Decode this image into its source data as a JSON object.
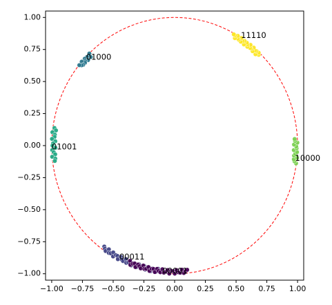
{
  "chart_data": {
    "type": "scatter",
    "title": "",
    "xlabel": "",
    "ylabel": "",
    "xlim": [
      -1.05,
      1.05
    ],
    "ylim": [
      -1.05,
      1.05
    ],
    "grid": false,
    "legend": "none",
    "xticks": [
      "−1.00",
      "−0.75",
      "−0.50",
      "−0.25",
      "0.00",
      "0.25",
      "0.50",
      "0.75",
      "1.00"
    ],
    "yticks": [
      "1.00",
      "0.75",
      "0.50",
      "0.25",
      "0.00",
      "−0.25",
      "−0.50",
      "−0.75",
      "−1.00"
    ],
    "xtick_values": [
      -1.0,
      -0.75,
      -0.5,
      -0.25,
      0.0,
      0.25,
      0.5,
      0.75,
      1.0
    ],
    "ytick_values": [
      1.0,
      0.75,
      0.5,
      0.25,
      0.0,
      -0.25,
      -0.5,
      -0.75,
      -1.0
    ],
    "reference_circle": {
      "center": [
        0,
        0
      ],
      "radius": 1.0,
      "color": "#ff0000",
      "style": "dashed"
    },
    "clusters": [
      {
        "label": "11110",
        "color": "#fde725",
        "angle_range_deg": [
          46,
          61
        ],
        "n": 24,
        "label_pos": [
          0.54,
          0.86
        ]
      },
      {
        "label": "10000",
        "color": "#7ad151",
        "angle_range_deg": [
          -8,
          3
        ],
        "n": 14,
        "label_pos": [
          0.98,
          -0.1
        ]
      },
      {
        "label": "01000",
        "color": "#2a788e",
        "angle_range_deg": [
          134,
          141
        ],
        "n": 12,
        "label_pos": [
          -0.72,
          0.69
        ]
      },
      {
        "label": "01001",
        "color": "#22a884",
        "angle_range_deg": [
          172,
          187
        ],
        "n": 16,
        "label_pos": [
          -1.0,
          -0.01
        ]
      },
      {
        "label": "00011",
        "color": "#414487",
        "angle_range_deg": [
          234,
          262
        ],
        "n": 34,
        "label_pos": [
          -0.45,
          -0.87
        ]
      },
      {
        "label": "00001",
        "color": "#440154",
        "angle_range_deg": [
          248,
          276
        ],
        "n": 34,
        "label_pos": [
          -0.1,
          -0.98
        ]
      }
    ]
  }
}
